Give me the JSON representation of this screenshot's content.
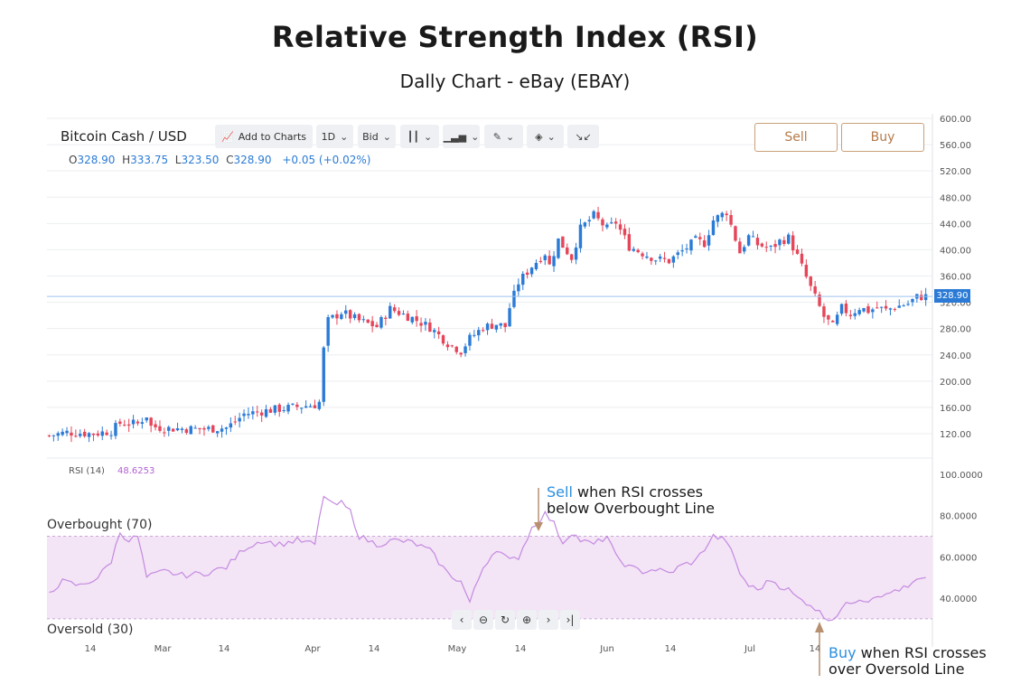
{
  "header": {
    "title": "Relative Strength Index (RSI)",
    "subtitle": "Dally Chart - eBay (EBAY)"
  },
  "toolbar": {
    "symbol": "Bitcoin Cash / USD",
    "add_to_charts": "Add to Charts",
    "interval": "1D",
    "price_type": "Bid",
    "sell_label": "Sell",
    "buy_label": "Buy"
  },
  "ohlc": {
    "o_label": "O",
    "o": "328.90",
    "h_label": "H",
    "h": "333.75",
    "l_label": "L",
    "l": "323.50",
    "c_label": "C",
    "c": "328.90",
    "change": "+0.05 (+0.02%)"
  },
  "rsi_info": {
    "label": "RSI (14)",
    "value": "48.6253"
  },
  "zones": {
    "overbought": "Overbought (70)",
    "oversold": "Oversold (30)"
  },
  "annotations": {
    "sell_kw": "Sell",
    "sell_rest1": " when RSI crosses",
    "sell_line2": "below Overbought Line",
    "buy_kw": "Buy",
    "buy_rest1": " when RSI crosses",
    "buy_line2": "over Oversold Line"
  },
  "last_price_badge": "328.90",
  "colors": {
    "up": "#2b7bd6",
    "down": "#e5465a",
    "rsi": "#c48ae0",
    "rsi_zone": "#f3e4f6",
    "accent": "#c9a07a"
  },
  "nav_icons": [
    "chevron-left-icon",
    "zoom-out-icon",
    "reset-icon",
    "zoom-in-icon",
    "chevron-right-icon",
    "go-to-end-icon"
  ],
  "chart_data": [
    {
      "type": "candlestick",
      "ylim": [
        100,
        600
      ],
      "y_ticks": [
        "600.00",
        "560.00",
        "520.00",
        "480.00",
        "440.00",
        "400.00",
        "360.00",
        "320.00",
        "280.00",
        "240.00",
        "200.00",
        "160.00",
        "120.00"
      ],
      "x_ticks": [
        "14",
        "Mar",
        "14",
        "Apr",
        "14",
        "May",
        "14",
        "Jun",
        "14",
        "Jul",
        "14"
      ],
      "last_price": 328.9,
      "close_anchors": [
        [
          0,
          117
        ],
        [
          4,
          122
        ],
        [
          10,
          120
        ],
        [
          14,
          124
        ],
        [
          16,
          136
        ],
        [
          20,
          135
        ],
        [
          22,
          148
        ],
        [
          23,
          131
        ],
        [
          27,
          128
        ],
        [
          35,
          127
        ],
        [
          40,
          129
        ],
        [
          42,
          138
        ],
        [
          44,
          150
        ],
        [
          50,
          156
        ],
        [
          56,
          161
        ],
        [
          60,
          164
        ],
        [
          61,
          168
        ],
        [
          62,
          248
        ],
        [
          63,
          292
        ],
        [
          66,
          305
        ],
        [
          70,
          292
        ],
        [
          74,
          283
        ],
        [
          77,
          310
        ],
        [
          82,
          296
        ],
        [
          86,
          282
        ],
        [
          90,
          258
        ],
        [
          93,
          246
        ],
        [
          95,
          265
        ],
        [
          98,
          282
        ],
        [
          101,
          287
        ],
        [
          103,
          283
        ],
        [
          104,
          312
        ],
        [
          106,
          350
        ],
        [
          109,
          375
        ],
        [
          112,
          395
        ],
        [
          113,
          376
        ],
        [
          115,
          415
        ],
        [
          118,
          388
        ],
        [
          120,
          432
        ],
        [
          123,
          452
        ],
        [
          126,
          432
        ],
        [
          128,
          442
        ],
        [
          131,
          405
        ],
        [
          134,
          395
        ],
        [
          137,
          386
        ],
        [
          140,
          383
        ],
        [
          143,
          398
        ],
        [
          146,
          414
        ],
        [
          148,
          410
        ],
        [
          150,
          445
        ],
        [
          153,
          458
        ],
        [
          156,
          396
        ],
        [
          158,
          420
        ],
        [
          160,
          408
        ],
        [
          163,
          402
        ],
        [
          165,
          413
        ],
        [
          167,
          418
        ],
        [
          169,
          390
        ],
        [
          172,
          342
        ],
        [
          175,
          298
        ],
        [
          177,
          283
        ],
        [
          179,
          311
        ],
        [
          181,
          302
        ],
        [
          183,
          312
        ],
        [
          185,
          307
        ],
        [
          187,
          312
        ],
        [
          189,
          308
        ],
        [
          191,
          313
        ],
        [
          194,
          318
        ],
        [
          196,
          328
        ],
        [
          198,
          329
        ]
      ]
    },
    {
      "type": "line",
      "series_name": "RSI (14)",
      "ylim": [
        25,
        100
      ],
      "y_ticks": [
        "100.0000",
        "80.0000",
        "60.0000",
        "40.0000"
      ],
      "overbought": 70,
      "oversold": 30,
      "last_value": 48.6253,
      "anchors": [
        [
          0,
          43
        ],
        [
          3,
          48
        ],
        [
          7,
          46
        ],
        [
          11,
          50
        ],
        [
          14,
          58
        ],
        [
          16,
          72
        ],
        [
          18,
          68
        ],
        [
          20,
          70
        ],
        [
          22,
          50
        ],
        [
          26,
          53
        ],
        [
          30,
          51
        ],
        [
          35,
          52
        ],
        [
          40,
          55
        ],
        [
          44,
          64
        ],
        [
          48,
          68
        ],
        [
          52,
          66
        ],
        [
          56,
          68
        ],
        [
          60,
          66
        ],
        [
          62,
          90
        ],
        [
          64,
          85
        ],
        [
          66,
          86
        ],
        [
          68,
          82
        ],
        [
          70,
          70
        ],
        [
          74,
          66
        ],
        [
          78,
          68
        ],
        [
          82,
          67
        ],
        [
          86,
          63
        ],
        [
          90,
          52
        ],
        [
          93,
          48
        ],
        [
          95,
          38
        ],
        [
          98,
          55
        ],
        [
          101,
          64
        ],
        [
          104,
          58
        ],
        [
          106,
          60
        ],
        [
          109,
          74
        ],
        [
          112,
          81
        ],
        [
          114,
          76
        ],
        [
          116,
          67
        ],
        [
          118,
          72
        ],
        [
          120,
          68
        ],
        [
          123,
          66
        ],
        [
          126,
          70
        ],
        [
          128,
          60
        ],
        [
          131,
          55
        ],
        [
          134,
          53
        ],
        [
          137,
          54
        ],
        [
          140,
          52
        ],
        [
          143,
          56
        ],
        [
          146,
          58
        ],
        [
          148,
          64
        ],
        [
          150,
          70
        ],
        [
          153,
          68
        ],
        [
          156,
          52
        ],
        [
          158,
          46
        ],
        [
          160,
          44
        ],
        [
          163,
          49
        ],
        [
          165,
          46
        ],
        [
          167,
          44
        ],
        [
          169,
          40
        ],
        [
          172,
          37
        ],
        [
          175,
          31
        ],
        [
          177,
          30
        ],
        [
          179,
          35
        ],
        [
          181,
          38
        ],
        [
          183,
          40
        ],
        [
          185,
          39
        ],
        [
          187,
          42
        ],
        [
          189,
          41
        ],
        [
          191,
          44
        ],
        [
          194,
          45
        ],
        [
          196,
          48.6
        ],
        [
          198,
          48.6
        ]
      ]
    }
  ]
}
